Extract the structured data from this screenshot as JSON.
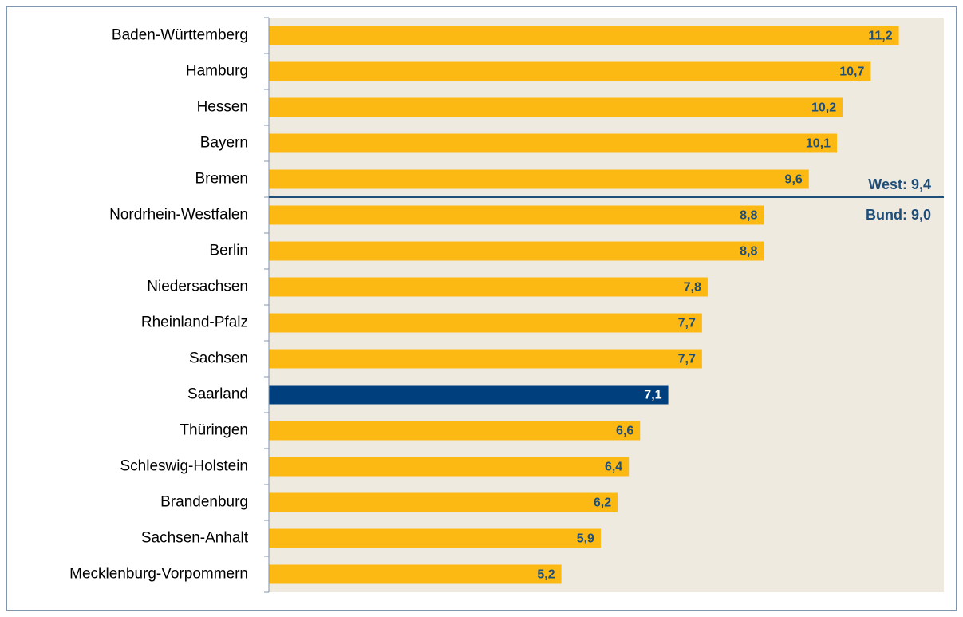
{
  "chart_data": {
    "type": "barh",
    "categories": [
      "Baden-Württemberg",
      "Hamburg",
      "Hessen",
      "Bayern",
      "Bremen",
      "Nordrhein-Westfalen",
      "Berlin",
      "Niedersachsen",
      "Rheinland-Pfalz",
      "Sachsen",
      "Saarland",
      "Thüringen",
      "Schleswig-Holstein",
      "Brandenburg",
      "Sachsen-Anhalt",
      "Mecklenburg-Vorpommern"
    ],
    "values": [
      11.2,
      10.7,
      10.2,
      10.1,
      9.6,
      8.8,
      8.8,
      7.8,
      7.7,
      7.7,
      7.1,
      6.6,
      6.4,
      6.2,
      5.9,
      5.2
    ],
    "value_labels": [
      "11,2",
      "10,7",
      "10,2",
      "10,1",
      "9,6",
      "8,8",
      "8,8",
      "7,8",
      "7,7",
      "7,7",
      "7,1",
      "6,6",
      "6,4",
      "6,2",
      "5,9",
      "5,2"
    ],
    "colors": [
      "#fdb913",
      "#fdb913",
      "#fdb913",
      "#fdb913",
      "#fdb913",
      "#fdb913",
      "#fdb913",
      "#fdb913",
      "#fdb913",
      "#fdb913",
      "#003f7d",
      "#fdb913",
      "#fdb913",
      "#fdb913",
      "#fdb913",
      "#fdb913"
    ],
    "label_colors": [
      "#1f4e79",
      "#1f4e79",
      "#1f4e79",
      "#1f4e79",
      "#1f4e79",
      "#1f4e79",
      "#1f4e79",
      "#1f4e79",
      "#1f4e79",
      "#1f4e79",
      "#ffffff",
      "#1f4e79",
      "#1f4e79",
      "#1f4e79",
      "#1f4e79",
      "#1f4e79"
    ],
    "xlim": [
      0,
      12
    ],
    "annotations": [
      "West: 9,4",
      "Bund: 9,0"
    ]
  }
}
